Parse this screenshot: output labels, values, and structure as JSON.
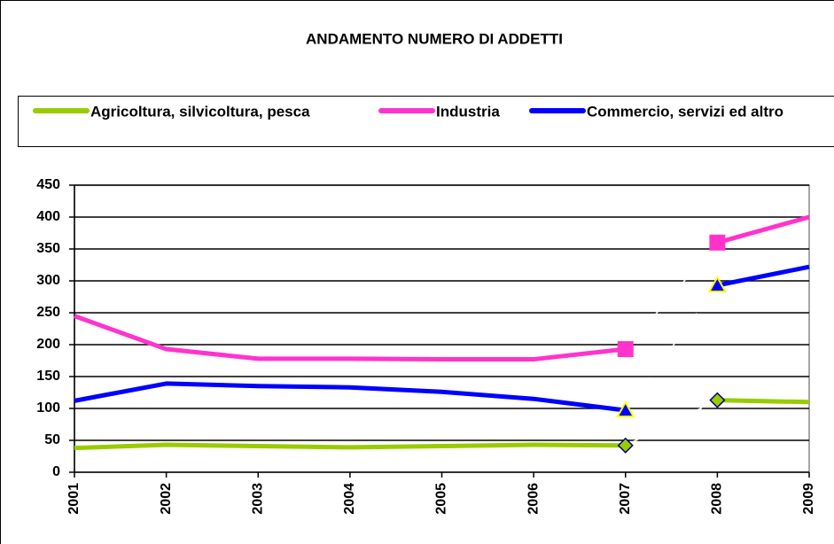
{
  "chart_data": {
    "type": "line",
    "title": "ANDAMENTO NUMERO DI ADDETTI",
    "categories": [
      "2001",
      "2002",
      "2003",
      "2004",
      "2005",
      "2006",
      "2007",
      "2008",
      "2009"
    ],
    "series": [
      {
        "name": "Agricoltura, silvicoltura, pesca",
        "color": "#99cc00",
        "marker": "diamond",
        "values": [
          38,
          43,
          41,
          39,
          41,
          43,
          42,
          113,
          110
        ]
      },
      {
        "name": "Industria",
        "color": "#ff33cc",
        "marker": "square",
        "values": [
          245,
          193,
          178,
          178,
          177,
          177,
          193,
          360,
          400
        ]
      },
      {
        "name": "Commercio, servizi ed altro",
        "color": "#0000ff",
        "marker": "triangle",
        "values": [
          112,
          139,
          135,
          133,
          126,
          115,
          97,
          293,
          322
        ]
      }
    ],
    "break_after": "2007",
    "ylim": [
      0,
      450
    ],
    "yticks": [
      0,
      50,
      100,
      150,
      200,
      250,
      300,
      350,
      400,
      450
    ],
    "grid": true,
    "legend": "top"
  }
}
